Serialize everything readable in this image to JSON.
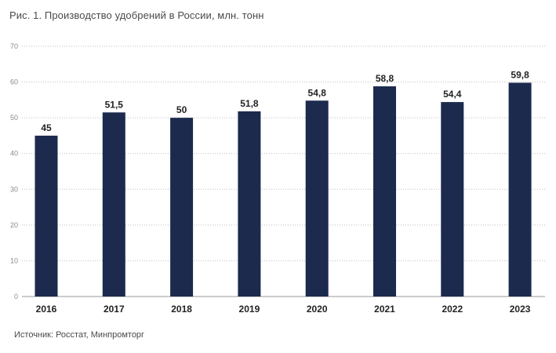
{
  "chart_data": {
    "type": "bar",
    "title": "Рис. 1.  Производство удобрений в России, млн. тонн",
    "categories": [
      "2016",
      "2017",
      "2018",
      "2019",
      "2020",
      "2021",
      "2022",
      "2023"
    ],
    "values": [
      45,
      51.5,
      50,
      51.8,
      54.8,
      58.8,
      54.4,
      59.8
    ],
    "value_labels": [
      "45",
      "51,5",
      "50",
      "51,8",
      "54,8",
      "58,8",
      "54,4",
      "59,8"
    ],
    "ylim": [
      0,
      70
    ],
    "yticks": [
      0,
      10,
      20,
      30,
      40,
      50,
      60,
      70
    ],
    "xlabel": "",
    "ylabel": "",
    "grid": true,
    "bar_color": "#1b2a4d",
    "source": "Источник: Росстат, Минпромторг"
  }
}
